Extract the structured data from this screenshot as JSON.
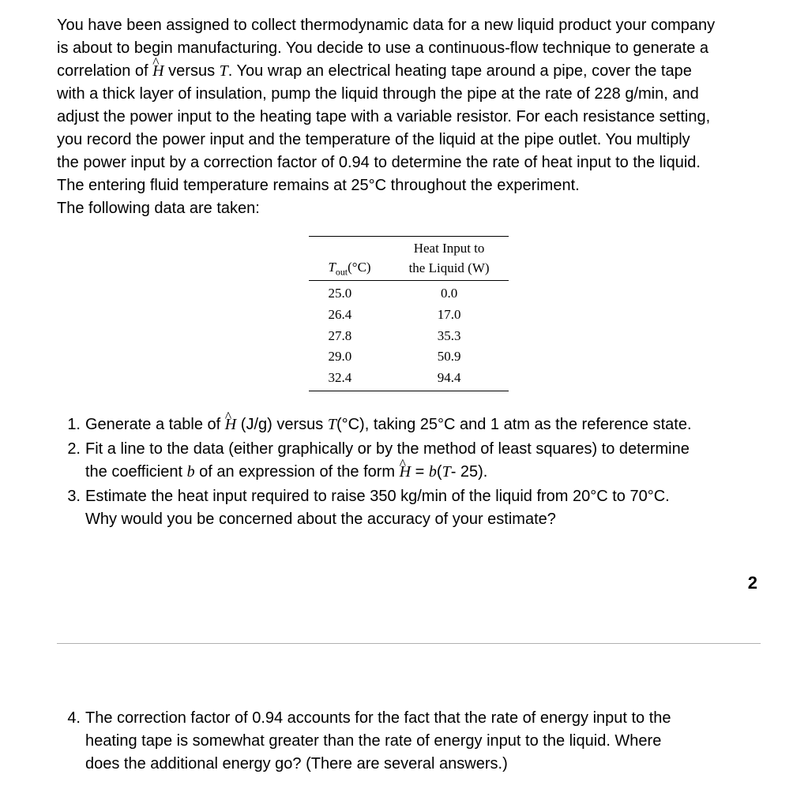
{
  "intro_lines": [
    "You have been assigned to collect thermodynamic data for a new liquid product your company",
    "is about to begin manufacturing. You decide to use a continuous-flow technique to generate a",
    "correlation of Ĥ versus T. You wrap an electrical heating tape around a pipe, cover the tape",
    "with a thick layer of insulation, pump the liquid through the pipe at the rate of 228 g/min, and",
    "adjust the power input to the heating tape with a variable resistor. For each resistance setting,",
    "you record the power input and the temperature of the liquid at the pipe outlet. You multiply",
    "the power input by a correction factor of 0.94 to determine the rate of heat input to the liquid.",
    "The entering fluid temperature remains at 25°C throughout the experiment.",
    "The following data are taken:"
  ],
  "table": {
    "col0_header_pre": "T",
    "col0_header_sub": "out",
    "col0_header_post": "(°C)",
    "col1_header_line1": "Heat Input to",
    "col1_header_line2": "the Liquid (W)",
    "rows": [
      [
        "25.0",
        "0.0"
      ],
      [
        "26.4",
        "17.0"
      ],
      [
        "27.8",
        "35.3"
      ],
      [
        "29.0",
        "50.9"
      ],
      [
        "32.4",
        "94.4"
      ]
    ]
  },
  "questions": {
    "q1_num": "1.",
    "q1_text_a": "Generate a table of ",
    "q1_text_b": "  (J/g) versus ",
    "q1_text_c": "(°C), taking 25°C and 1 atm as the reference state.",
    "q2_num": "2.",
    "q2_line1": " Fit a line to the data (either graphically or by the method of least squares) to determine",
    "q2_line2_a": "the coefficient ",
    "q2_line2_b": " of an expression of the form ",
    "q2_line2_c": "  = ",
    "q2_line2_d": "(",
    "q2_line2_e": "- 25).",
    "q3_num": "3.",
    "q3_line1": "Estimate the heat input required to raise 350 kg/min of the liquid from 20°C to 70°C.",
    "q3_line2": "Why would you be concerned about the accuracy of your estimate?"
  },
  "page_number": "2",
  "q4": {
    "num": "4.",
    "line1": " The correction factor of 0.94 accounts for the fact that the rate of energy input to the",
    "line2": "heating tape is somewhat greater than the rate of energy input to the liquid. Where",
    "line3": "does the additional energy go? (There are several answers.)"
  },
  "symbols": {
    "H": "H",
    "T": "T",
    "b": "b"
  }
}
